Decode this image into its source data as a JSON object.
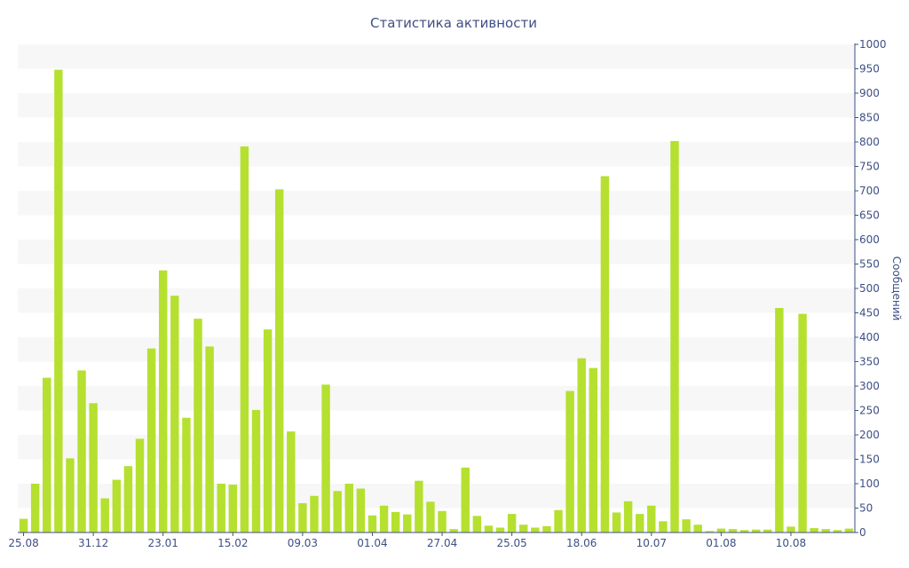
{
  "chart_data": {
    "type": "bar",
    "title": "Статистика активности",
    "ylabel": "Сообщений",
    "xlabel": "",
    "ylim": [
      0,
      1000
    ],
    "ytick_step": 50,
    "y_axis_side": "right",
    "grid": "alternating horizontal bands",
    "bar_color": "#b5e030",
    "text_color": "#3e4f85",
    "x_tick_labels": [
      {
        "label": "25.08",
        "index": 0
      },
      {
        "label": "31.12",
        "index": 6
      },
      {
        "label": "23.01",
        "index": 12
      },
      {
        "label": "15.02",
        "index": 18
      },
      {
        "label": "09.03",
        "index": 24
      },
      {
        "label": "01.04",
        "index": 30
      },
      {
        "label": "27.04",
        "index": 36
      },
      {
        "label": "25.05",
        "index": 42
      },
      {
        "label": "18.06",
        "index": 48
      },
      {
        "label": "10.07",
        "index": 54
      },
      {
        "label": "01.08",
        "index": 60
      },
      {
        "label": "10.08",
        "index": 66
      }
    ],
    "values": [
      28,
      100,
      317,
      948,
      152,
      332,
      265,
      70,
      108,
      136,
      192,
      377,
      537,
      485,
      235,
      438,
      381,
      100,
      98,
      791,
      251,
      416,
      703,
      207,
      60,
      75,
      303,
      85,
      100,
      90,
      35,
      55,
      42,
      37,
      106,
      63,
      44,
      7,
      133,
      34,
      14,
      10,
      38,
      16,
      10,
      13,
      46,
      290,
      357,
      337,
      730,
      41,
      64,
      38,
      55,
      23,
      802,
      27,
      16,
      3,
      8,
      7,
      5,
      6,
      6,
      460,
      12,
      448,
      9,
      7,
      5,
      8
    ]
  }
}
